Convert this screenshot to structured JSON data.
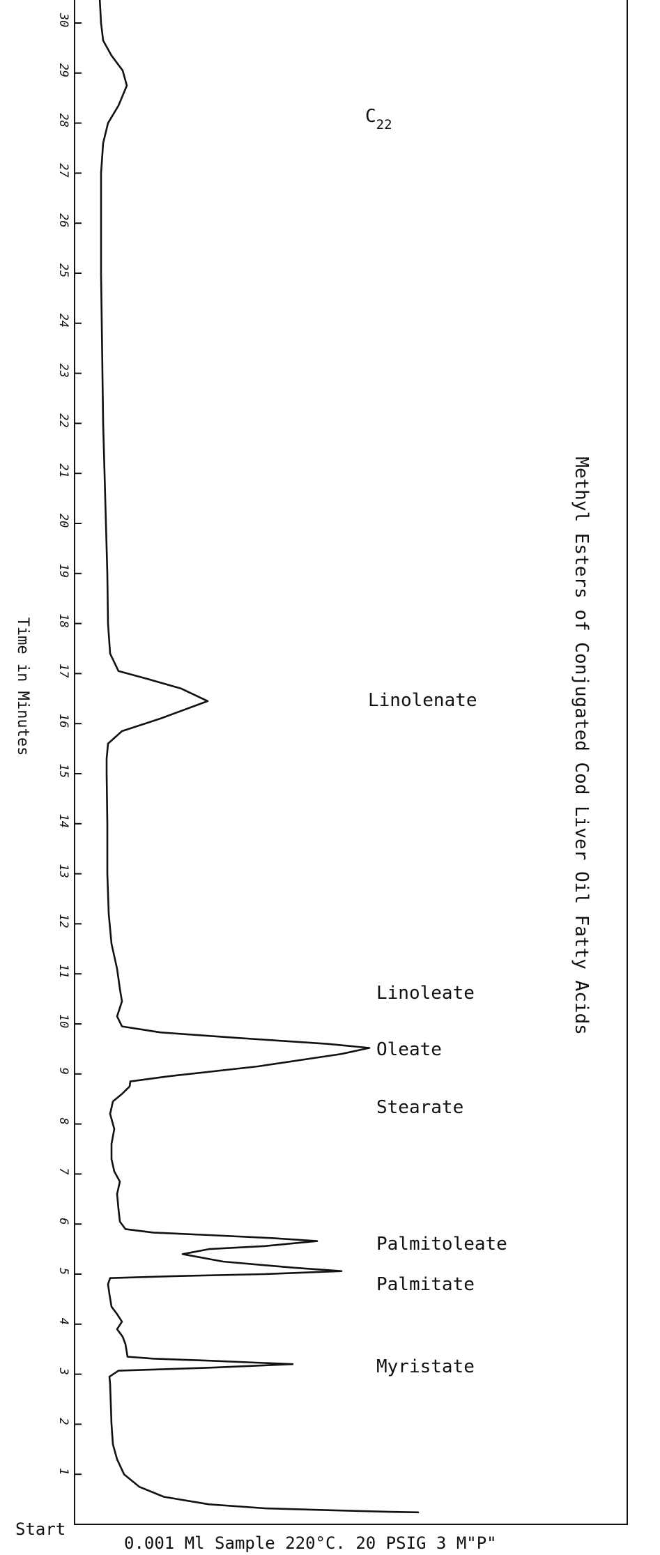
{
  "chart_data": {
    "type": "line",
    "title": "Methyl Esters of Conjugated Cod Liver Oil Fatty Acids",
    "xlabel": "",
    "ylabel": "Time in Minutes",
    "start_label": "Start",
    "footer": "0.001 Ml Sample 220°C. 20 PSIG  3 M\"P\"",
    "ylim": [
      0,
      31
    ],
    "ticks": [
      "1",
      "2",
      "3",
      "4",
      "5",
      "6",
      "7",
      "8",
      "9",
      "10",
      "11",
      "12",
      "13",
      "14",
      "15",
      "16",
      "17",
      "18",
      "19",
      "20",
      "21",
      "22",
      "23",
      "24",
      "25",
      "26",
      "27",
      "28",
      "29",
      "30"
    ],
    "peaks": [
      {
        "name": "C",
        "sub": "22",
        "time": 28.8
      },
      {
        "name": "Linolenate",
        "time": 16.5
      },
      {
        "name": "Linoleate",
        "time": 10.5
      },
      {
        "name": "Oleate",
        "time": 9.5
      },
      {
        "name": "Stearate",
        "time": 8.4
      },
      {
        "name": "Palmitoleate",
        "time": 5.6
      },
      {
        "name": "Palmitate",
        "time": 5.0
      },
      {
        "name": "Myristate",
        "time": 3.2
      }
    ]
  }
}
